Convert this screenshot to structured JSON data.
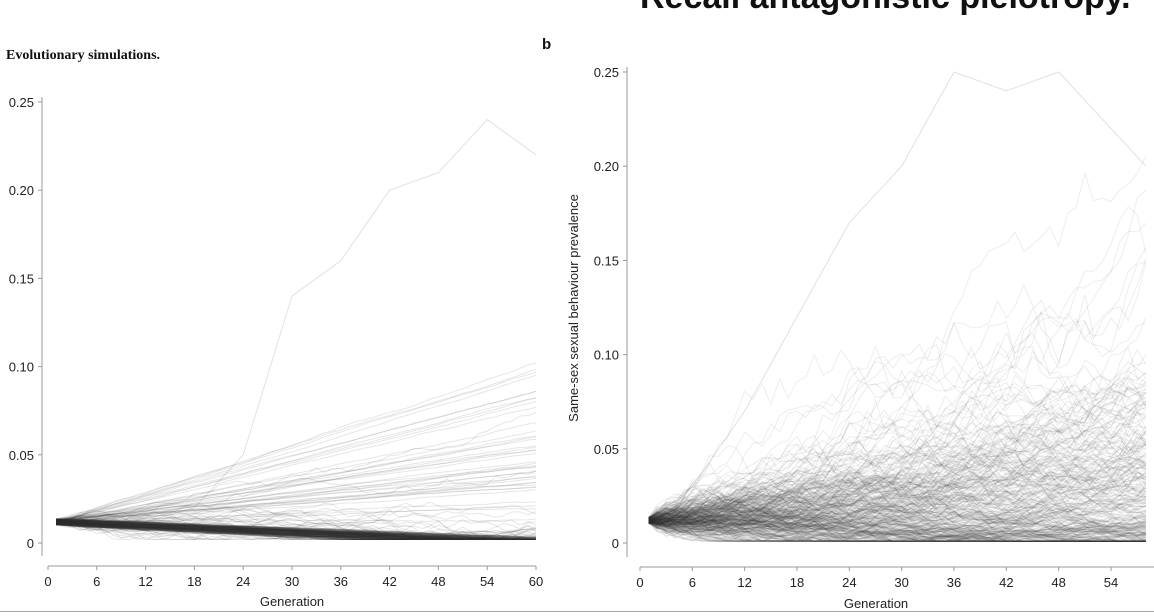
{
  "slide_title": "Recall antagonistic pleiotropy.",
  "chart_data": [
    {
      "type": "line",
      "panel_title": "Evolutionary simulations.",
      "xlabel": "Generation",
      "ylabel": "",
      "xlim": [
        0,
        60
      ],
      "ylim": [
        0,
        0.25
      ],
      "xticks": [
        "0",
        "6",
        "12",
        "18",
        "24",
        "30",
        "36",
        "42",
        "48",
        "54",
        "60"
      ],
      "yticks": [
        "0",
        "0.05",
        "0.10",
        "0.15",
        "0.20",
        "0.25"
      ],
      "line_color": "#333333",
      "grid": false,
      "upper_trajectory": {
        "x": [
          1,
          6,
          12,
          18,
          24,
          30,
          36,
          42,
          48,
          54,
          60
        ],
        "y": [
          0.012,
          0.012,
          0.012,
          0.02,
          0.05,
          0.14,
          0.16,
          0.2,
          0.21,
          0.24,
          0.22
        ]
      },
      "bulk_start": 0.012,
      "bulk_end": 0.002
    },
    {
      "type": "line",
      "panel_label": "b",
      "xlabel": "Generation",
      "ylabel": "Same-sex sexual behaviour prevalence",
      "xlim": [
        0,
        58
      ],
      "ylim": [
        0,
        0.25
      ],
      "xticks": [
        "0",
        "6",
        "12",
        "18",
        "24",
        "30",
        "36",
        "42",
        "48",
        "54"
      ],
      "yticks": [
        "0",
        "0.05",
        "0.10",
        "0.15",
        "0.20",
        "0.25"
      ],
      "line_color": "#333333",
      "grid": false,
      "upper_trajectory": {
        "x": [
          1,
          6,
          12,
          18,
          24,
          30,
          36,
          42,
          48,
          54,
          58
        ],
        "y": [
          0.012,
          0.03,
          0.07,
          0.12,
          0.17,
          0.2,
          0.25,
          0.24,
          0.25,
          0.22,
          0.2
        ]
      },
      "bulk_start": 0.012,
      "bulk_peak": 0.03
    }
  ]
}
